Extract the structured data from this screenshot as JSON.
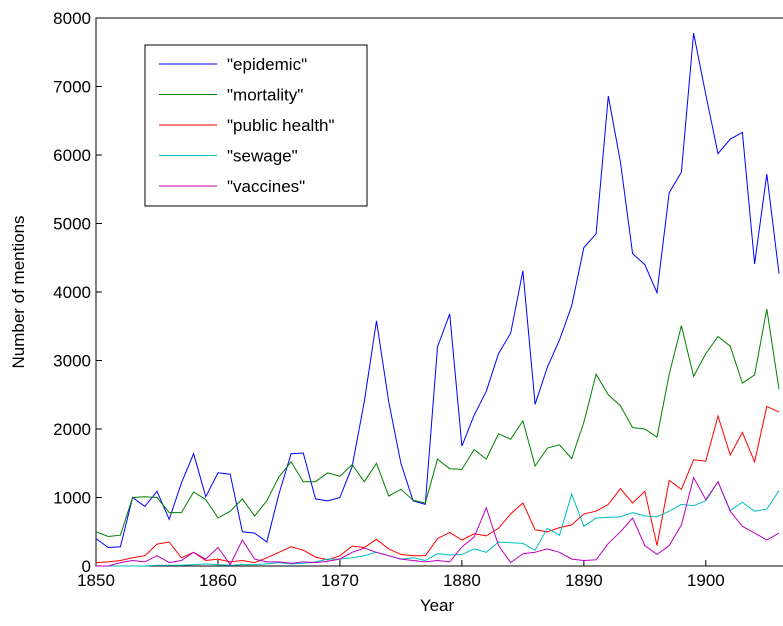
{
  "chart_data": {
    "type": "line",
    "x_label": "Year",
    "y_label": "Number of mentions",
    "x": [
      1850,
      1851,
      1852,
      1853,
      1854,
      1855,
      1856,
      1857,
      1858,
      1859,
      1860,
      1861,
      1862,
      1863,
      1864,
      1865,
      1866,
      1867,
      1868,
      1869,
      1870,
      1871,
      1872,
      1873,
      1874,
      1875,
      1876,
      1877,
      1878,
      1879,
      1880,
      1881,
      1882,
      1883,
      1884,
      1885,
      1886,
      1887,
      1888,
      1889,
      1890,
      1891,
      1892,
      1893,
      1894,
      1895,
      1896,
      1897,
      1898,
      1899,
      1900,
      1901,
      1902,
      1903,
      1904,
      1905,
      1906
    ],
    "series": [
      {
        "name": "\"epidemic\"",
        "color": "#0000ff",
        "values": [
          400,
          270,
          280,
          1000,
          870,
          1090,
          680,
          1210,
          1640,
          1010,
          1360,
          1340,
          500,
          480,
          350,
          1050,
          1640,
          1650,
          980,
          950,
          1000,
          1450,
          2400,
          3580,
          2400,
          1500,
          950,
          900,
          3200,
          3680,
          1750,
          2200,
          2550,
          3100,
          3400,
          4310,
          2360,
          2900,
          3300,
          3800,
          4650,
          4850,
          6860,
          5900,
          4560,
          4400,
          3990,
          5450,
          5750,
          7780,
          6880,
          6020,
          6230,
          6330,
          4410,
          5720,
          4270
        ]
      },
      {
        "name": "\"mortality\"",
        "color": "#008000",
        "values": [
          500,
          430,
          450,
          1000,
          1010,
          1000,
          780,
          780,
          1080,
          970,
          700,
          800,
          980,
          730,
          950,
          1300,
          1520,
          1230,
          1230,
          1360,
          1310,
          1480,
          1230,
          1500,
          1020,
          1120,
          960,
          920,
          1560,
          1420,
          1410,
          1700,
          1560,
          1930,
          1850,
          2120,
          1460,
          1720,
          1770,
          1570,
          2100,
          2800,
          2500,
          2340,
          2020,
          2000,
          1880,
          2800,
          3510,
          2770,
          3100,
          3350,
          3210,
          2670,
          2790,
          3750,
          2580
        ]
      },
      {
        "name": "\"public health\"",
        "color": "#ff0000",
        "values": [
          50,
          60,
          80,
          120,
          150,
          320,
          350,
          120,
          200,
          80,
          100,
          60,
          80,
          50,
          120,
          200,
          280,
          230,
          130,
          90,
          150,
          290,
          270,
          390,
          250,
          170,
          150,
          150,
          400,
          490,
          380,
          470,
          440,
          550,
          760,
          920,
          530,
          500,
          560,
          600,
          760,
          800,
          900,
          1130,
          920,
          1090,
          300,
          1250,
          1120,
          1550,
          1530,
          2190,
          1620,
          1950,
          1520,
          2330,
          2250
        ]
      },
      {
        "name": "\"sewage\"",
        "color": "#00bfbf",
        "values": [
          0,
          0,
          0,
          0,
          0,
          10,
          10,
          10,
          20,
          30,
          20,
          10,
          20,
          20,
          30,
          50,
          30,
          40,
          60,
          100,
          100,
          120,
          150,
          200,
          150,
          100,
          120,
          80,
          180,
          160,
          170,
          250,
          200,
          350,
          340,
          330,
          230,
          550,
          450,
          1050,
          580,
          700,
          710,
          720,
          780,
          730,
          720,
          800,
          900,
          880,
          950,
          1230,
          810,
          930,
          800,
          830,
          1100
        ]
      },
      {
        "name": "\"vaccines\"",
        "color": "#bf00bf",
        "values": [
          0,
          0,
          50,
          80,
          60,
          150,
          50,
          80,
          200,
          100,
          270,
          20,
          380,
          100,
          60,
          60,
          40,
          60,
          50,
          70,
          100,
          200,
          260,
          200,
          150,
          100,
          80,
          60,
          80,
          60,
          280,
          420,
          850,
          300,
          50,
          180,
          200,
          250,
          200,
          100,
          80,
          90,
          330,
          500,
          700,
          300,
          170,
          300,
          600,
          1290,
          970,
          1230,
          800,
          580,
          480,
          380,
          480
        ]
      }
    ],
    "xlim": [
      1850,
      1906
    ],
    "ylim": [
      0,
      8000
    ],
    "xticks": [
      1850,
      1860,
      1870,
      1880,
      1890,
      1900
    ],
    "yticks": [
      0,
      1000,
      2000,
      3000,
      4000,
      5000,
      6000,
      7000,
      8000
    ],
    "legend": "upper left"
  }
}
